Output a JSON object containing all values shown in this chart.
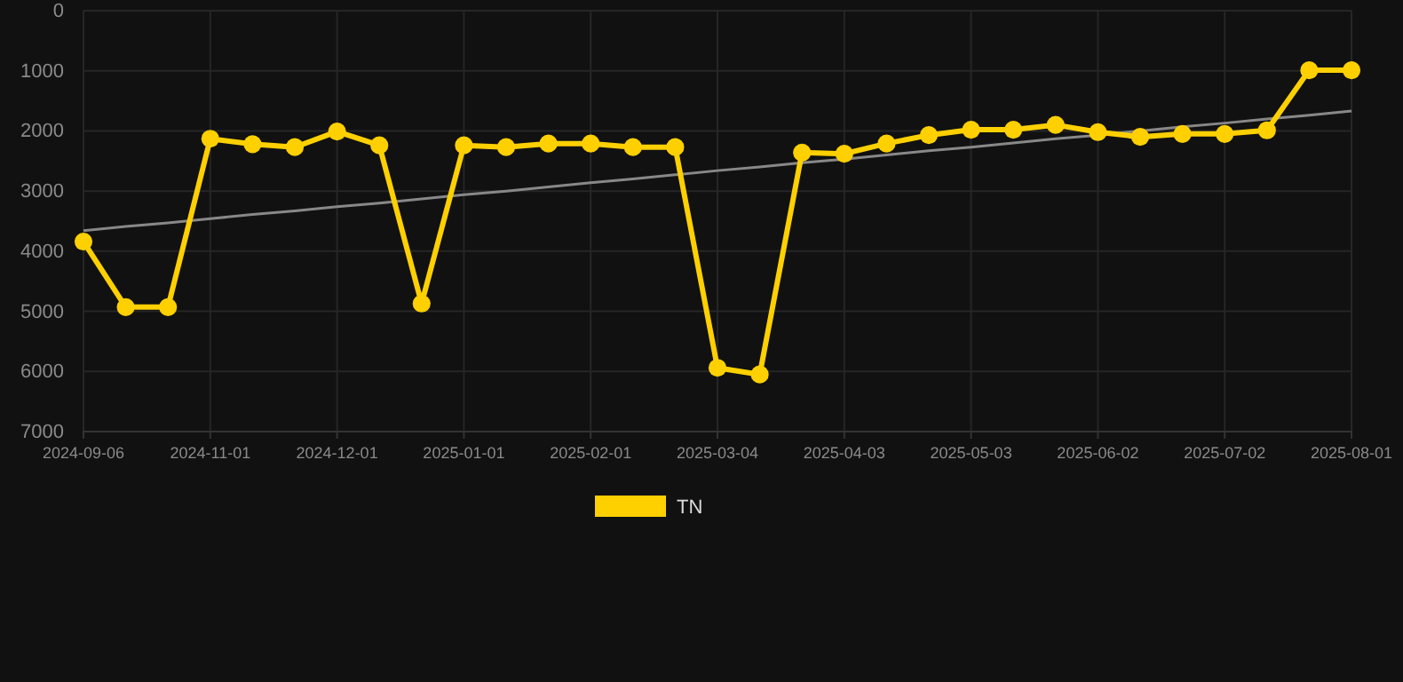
{
  "chart_data": {
    "type": "line",
    "categories": [
      "2024-09-06",
      null,
      null,
      "2024-11-01",
      null,
      null,
      "2024-12-01",
      null,
      null,
      "2025-01-01",
      null,
      null,
      "2025-02-01",
      null,
      null,
      "2025-03-04",
      null,
      null,
      "2025-04-03",
      null,
      null,
      "2025-05-03",
      null,
      null,
      "2025-06-02",
      null,
      null,
      "2025-07-02",
      null,
      null,
      "2025-08-01"
    ],
    "series": [
      {
        "name": "TN",
        "color": "#ffd000",
        "marker": "circle",
        "values": [
          3840,
          4930,
          4930,
          2130,
          2220,
          2270,
          2010,
          2240,
          4870,
          2240,
          2270,
          2210,
          2210,
          2270,
          2270,
          5940,
          6050,
          2360,
          2380,
          2210,
          2070,
          1980,
          1980,
          1900,
          2020,
          2100,
          2050,
          2050,
          1990,
          990,
          990
        ]
      },
      {
        "type": "line",
        "color": "#888888",
        "marker": "none",
        "values": [
          3660,
          3590,
          3530,
          3460,
          3390,
          3330,
          3260,
          3200,
          3130,
          3060,
          3000,
          2930,
          2860,
          2800,
          2730,
          2660,
          2600,
          2530,
          2470,
          2400,
          2330,
          2270,
          2200,
          2130,
          2070,
          2000,
          1930,
          1870,
          1800,
          1740,
          1670
        ]
      }
    ],
    "ylim": [
      7000,
      0
    ],
    "yticks": [
      0,
      1000,
      2000,
      3000,
      4000,
      5000,
      6000,
      7000
    ],
    "grid": true,
    "legend": "bottom",
    "line_style": "solid"
  }
}
